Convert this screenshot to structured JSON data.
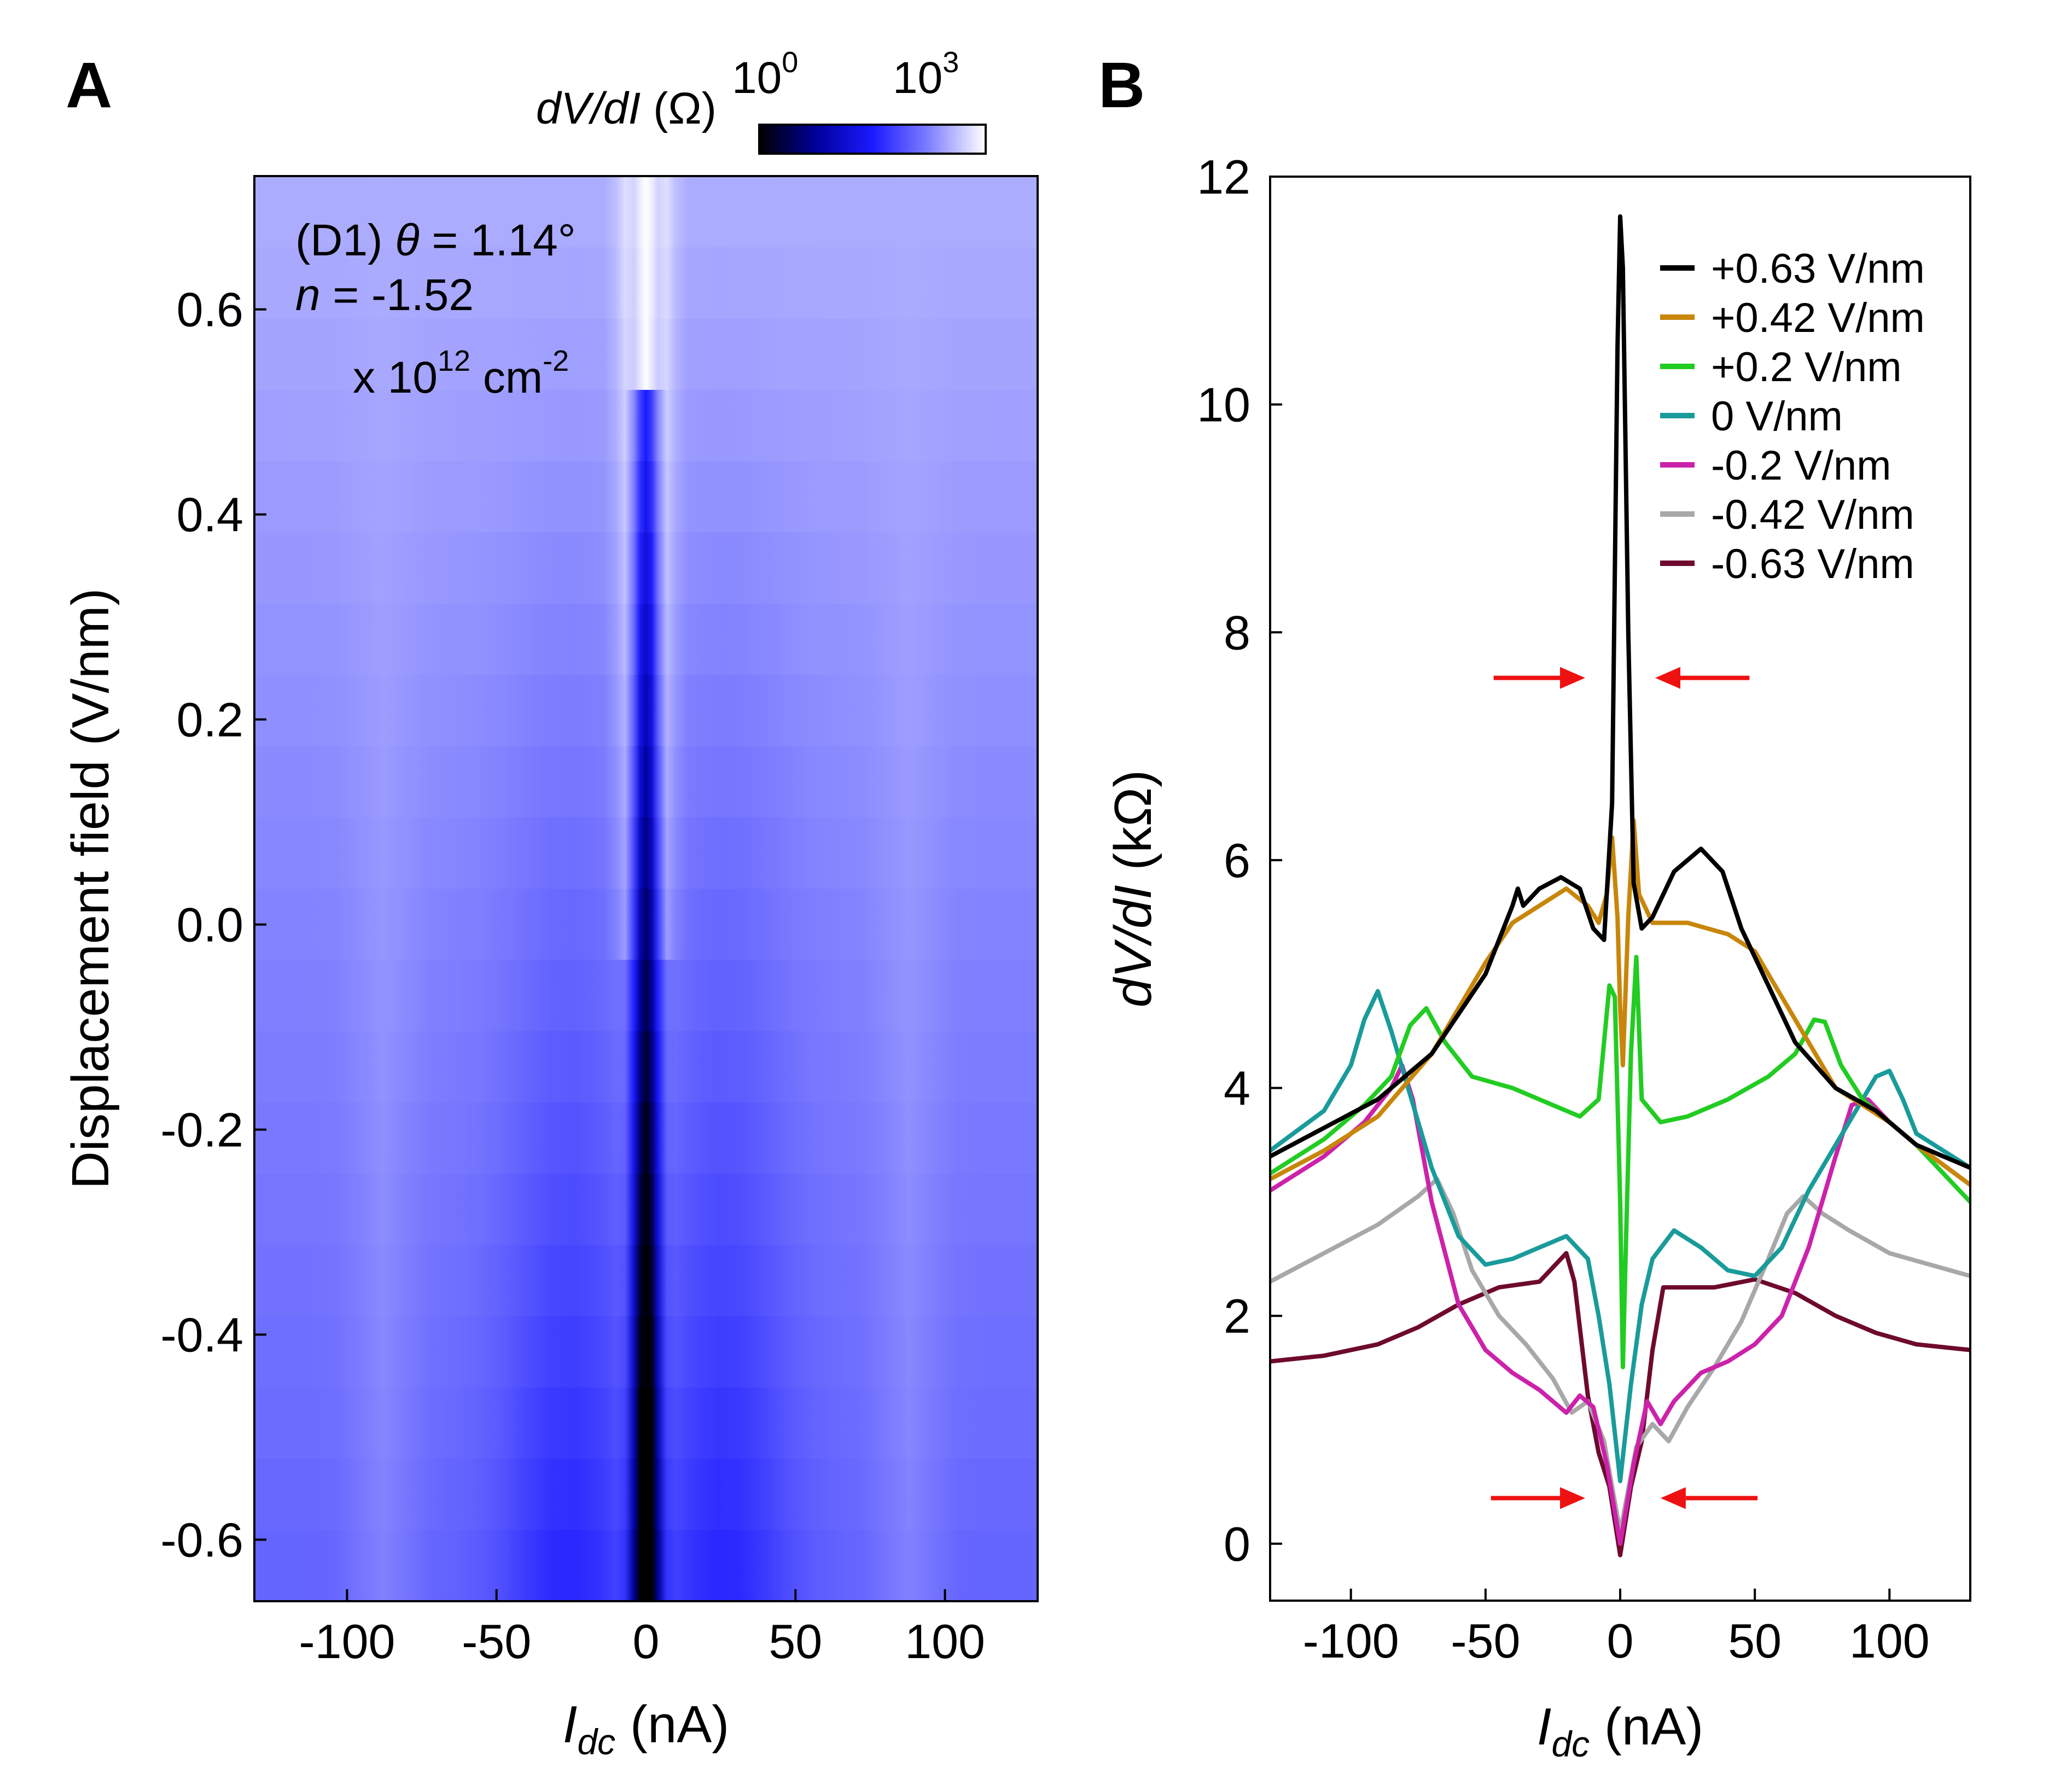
{
  "chart_data": [
    {
      "panel": "A",
      "type": "heatmap",
      "annotation": {
        "line1_prefix": "(D1) ",
        "line1_var": "θ",
        "line1_rest": " = 1.14°",
        "line2_var": "n",
        "line2_rest": " = -1.52",
        "line3_prefix": "x 10",
        "line3_exp": "12",
        "line3_unit": " cm",
        "line3_unit_exp": "-2"
      },
      "colorbar": {
        "label_italic": "dV/dI",
        "label_unit": " (Ω)",
        "tick_left_base": "10",
        "tick_left_exp": "0",
        "tick_right_base": "10",
        "tick_right_exp": "3",
        "stops": [
          "#000000",
          "#00009a",
          "#1a1aff",
          "#8080ff",
          "#ffffff"
        ]
      },
      "xlabel_italic": "I",
      "xlabel_sub": "dc",
      "xlabel_unit": " (nA)",
      "ylabel": "Displacement field (V/nm)",
      "xlim": [
        -131,
        131
      ],
      "ylim": [
        -0.66,
        0.73
      ],
      "xticks": [
        -100,
        -50,
        0,
        50,
        100
      ],
      "xtick_labels": [
        "-100",
        "-50",
        "0",
        "50",
        "100"
      ],
      "yticks": [
        -0.6,
        -0.4,
        -0.2,
        0.0,
        0.2,
        0.4,
        0.6
      ],
      "ytick_labels": [
        "-0.6",
        "-0.4",
        "-0.2",
        "0.0",
        "0.2",
        "0.4",
        "0.6"
      ],
      "rows": 20
    },
    {
      "panel": "B",
      "type": "line",
      "xlabel_italic": "I",
      "xlabel_sub": "dc",
      "xlabel_unit": " (nA)",
      "ylabel_italic": "dV/dI",
      "ylabel_unit": " (kΩ)",
      "xlim": [
        -130,
        130
      ],
      "ylim": [
        -0.5,
        12.0
      ],
      "xticks": [
        -100,
        -50,
        0,
        50,
        100
      ],
      "xtick_labels": [
        "-100",
        "-50",
        "0",
        "50",
        "100"
      ],
      "yticks": [
        0,
        2,
        4,
        6,
        8,
        10,
        12
      ],
      "ytick_labels": [
        "0",
        "2",
        "4",
        "6",
        "8",
        "10",
        "12"
      ],
      "arrows": [
        {
          "from": -47,
          "to": -13,
          "y": 7.6
        },
        {
          "from": 48,
          "to": 13,
          "y": 7.6
        },
        {
          "from": -48,
          "to": -13,
          "y": 0.4
        },
        {
          "from": 51,
          "to": 15,
          "y": 0.4
        }
      ],
      "series": [
        {
          "name": "+0.63 V/nm",
          "color": "#000000",
          "points": [
            [
              -130,
              3.4
            ],
            [
              -110,
              3.65
            ],
            [
              -90,
              3.9
            ],
            [
              -70,
              4.3
            ],
            [
              -50,
              5.0
            ],
            [
              -40,
              5.6
            ],
            [
              -38,
              5.75
            ],
            [
              -36,
              5.6
            ],
            [
              -30,
              5.75
            ],
            [
              -22,
              5.85
            ],
            [
              -15,
              5.75
            ],
            [
              -10,
              5.4
            ],
            [
              -6,
              5.3
            ],
            [
              -3,
              6.5
            ],
            [
              -1,
              10.5
            ],
            [
              0,
              11.65
            ],
            [
              1,
              11.2
            ],
            [
              3,
              8.0
            ],
            [
              5,
              5.8
            ],
            [
              8,
              5.4
            ],
            [
              12,
              5.5
            ],
            [
              20,
              5.9
            ],
            [
              30,
              6.1
            ],
            [
              38,
              5.9
            ],
            [
              45,
              5.4
            ],
            [
              55,
              4.9
            ],
            [
              65,
              4.4
            ],
            [
              80,
              4.0
            ],
            [
              95,
              3.8
            ],
            [
              110,
              3.5
            ],
            [
              130,
              3.3
            ]
          ]
        },
        {
          "name": "+0.42 V/nm",
          "color": "#c8860a",
          "points": [
            [
              -130,
              3.2
            ],
            [
              -110,
              3.45
            ],
            [
              -90,
              3.75
            ],
            [
              -70,
              4.3
            ],
            [
              -50,
              5.1
            ],
            [
              -40,
              5.45
            ],
            [
              -30,
              5.6
            ],
            [
              -20,
              5.75
            ],
            [
              -12,
              5.6
            ],
            [
              -8,
              5.45
            ],
            [
              -5,
              5.7
            ],
            [
              -3,
              6.2
            ],
            [
              -1,
              5.5
            ],
            [
              0,
              4.7
            ],
            [
              1,
              4.2
            ],
            [
              3,
              5.5
            ],
            [
              5,
              6.35
            ],
            [
              7,
              5.7
            ],
            [
              12,
              5.45
            ],
            [
              25,
              5.45
            ],
            [
              40,
              5.35
            ],
            [
              50,
              5.2
            ],
            [
              60,
              4.8
            ],
            [
              70,
              4.4
            ],
            [
              80,
              4.0
            ],
            [
              90,
              3.85
            ],
            [
              100,
              3.7
            ],
            [
              110,
              3.5
            ],
            [
              130,
              3.15
            ]
          ]
        },
        {
          "name": "+0.2 V/nm",
          "color": "#22cc22",
          "points": [
            [
              -130,
              3.25
            ],
            [
              -110,
              3.55
            ],
            [
              -95,
              3.85
            ],
            [
              -85,
              4.1
            ],
            [
              -78,
              4.55
            ],
            [
              -72,
              4.7
            ],
            [
              -65,
              4.4
            ],
            [
              -55,
              4.1
            ],
            [
              -40,
              4.0
            ],
            [
              -25,
              3.85
            ],
            [
              -15,
              3.75
            ],
            [
              -8,
              3.9
            ],
            [
              -4,
              4.9
            ],
            [
              -2,
              4.8
            ],
            [
              0,
              3.0
            ],
            [
              1,
              1.55
            ],
            [
              2,
              2.5
            ],
            [
              4,
              4.3
            ],
            [
              6,
              5.15
            ],
            [
              8,
              3.9
            ],
            [
              15,
              3.7
            ],
            [
              25,
              3.75
            ],
            [
              40,
              3.9
            ],
            [
              55,
              4.1
            ],
            [
              65,
              4.3
            ],
            [
              72,
              4.6
            ],
            [
              76,
              4.58
            ],
            [
              82,
              4.2
            ],
            [
              90,
              3.9
            ],
            [
              100,
              3.7
            ],
            [
              110,
              3.5
            ],
            [
              130,
              3.0
            ]
          ]
        },
        {
          "name": "0 V/nm",
          "color": "#1a9b9b",
          "points": [
            [
              -130,
              3.45
            ],
            [
              -110,
              3.8
            ],
            [
              -100,
              4.2
            ],
            [
              -95,
              4.6
            ],
            [
              -90,
              4.85
            ],
            [
              -85,
              4.5
            ],
            [
              -80,
              4.1
            ],
            [
              -70,
              3.3
            ],
            [
              -60,
              2.7
            ],
            [
              -50,
              2.45
            ],
            [
              -40,
              2.5
            ],
            [
              -30,
              2.6
            ],
            [
              -20,
              2.7
            ],
            [
              -12,
              2.5
            ],
            [
              -8,
              2.0
            ],
            [
              -4,
              1.4
            ],
            [
              0,
              0.55
            ],
            [
              4,
              1.4
            ],
            [
              8,
              2.1
            ],
            [
              12,
              2.5
            ],
            [
              20,
              2.75
            ],
            [
              30,
              2.6
            ],
            [
              40,
              2.4
            ],
            [
              50,
              2.35
            ],
            [
              60,
              2.6
            ],
            [
              70,
              3.1
            ],
            [
              80,
              3.5
            ],
            [
              90,
              3.9
            ],
            [
              95,
              4.1
            ],
            [
              100,
              4.15
            ],
            [
              105,
              3.9
            ],
            [
              110,
              3.6
            ],
            [
              130,
              3.3
            ]
          ]
        },
        {
          "name": "-0.2 V/nm",
          "color": "#cc22aa",
          "points": [
            [
              -130,
              3.1
            ],
            [
              -110,
              3.4
            ],
            [
              -95,
              3.7
            ],
            [
              -85,
              4.0
            ],
            [
              -81,
              4.2
            ],
            [
              -77,
              3.9
            ],
            [
              -70,
              3.0
            ],
            [
              -60,
              2.1
            ],
            [
              -50,
              1.7
            ],
            [
              -40,
              1.5
            ],
            [
              -30,
              1.35
            ],
            [
              -20,
              1.15
            ],
            [
              -15,
              1.3
            ],
            [
              -10,
              1.2
            ],
            [
              -5,
              0.7
            ],
            [
              0,
              0.0
            ],
            [
              5,
              0.7
            ],
            [
              10,
              1.25
            ],
            [
              15,
              1.05
            ],
            [
              20,
              1.25
            ],
            [
              30,
              1.5
            ],
            [
              40,
              1.6
            ],
            [
              50,
              1.75
            ],
            [
              60,
              2.0
            ],
            [
              70,
              2.6
            ],
            [
              80,
              3.4
            ],
            [
              86,
              3.85
            ],
            [
              92,
              3.9
            ],
            [
              100,
              3.7
            ],
            [
              110,
              3.5
            ],
            [
              130,
              3.15
            ]
          ]
        },
        {
          "name": "-0.42 V/nm",
          "color": "#a8a8a8",
          "points": [
            [
              -130,
              2.3
            ],
            [
              -110,
              2.55
            ],
            [
              -90,
              2.8
            ],
            [
              -75,
              3.05
            ],
            [
              -68,
              3.2
            ],
            [
              -62,
              2.9
            ],
            [
              -55,
              2.4
            ],
            [
              -45,
              2.0
            ],
            [
              -35,
              1.75
            ],
            [
              -25,
              1.45
            ],
            [
              -18,
              1.15
            ],
            [
              -12,
              1.25
            ],
            [
              -6,
              0.9
            ],
            [
              0,
              0.1
            ],
            [
              6,
              0.85
            ],
            [
              12,
              1.05
            ],
            [
              18,
              0.9
            ],
            [
              25,
              1.2
            ],
            [
              35,
              1.55
            ],
            [
              45,
              1.95
            ],
            [
              55,
              2.5
            ],
            [
              62,
              2.9
            ],
            [
              68,
              3.05
            ],
            [
              75,
              2.9
            ],
            [
              85,
              2.75
            ],
            [
              100,
              2.55
            ],
            [
              115,
              2.45
            ],
            [
              130,
              2.35
            ]
          ]
        },
        {
          "name": "-0.63 V/nm",
          "color": "#6e0a2e",
          "points": [
            [
              -130,
              1.6
            ],
            [
              -110,
              1.65
            ],
            [
              -90,
              1.75
            ],
            [
              -75,
              1.9
            ],
            [
              -60,
              2.1
            ],
            [
              -45,
              2.25
            ],
            [
              -30,
              2.3
            ],
            [
              -24,
              2.45
            ],
            [
              -20,
              2.55
            ],
            [
              -17,
              2.3
            ],
            [
              -12,
              1.3
            ],
            [
              -8,
              0.8
            ],
            [
              -4,
              0.5
            ],
            [
              0,
              -0.1
            ],
            [
              4,
              0.5
            ],
            [
              8,
              0.9
            ],
            [
              12,
              1.7
            ],
            [
              16,
              2.25
            ],
            [
              22,
              2.25
            ],
            [
              35,
              2.25
            ],
            [
              50,
              2.32
            ],
            [
              65,
              2.2
            ],
            [
              80,
              2.0
            ],
            [
              95,
              1.85
            ],
            [
              110,
              1.75
            ],
            [
              130,
              1.7
            ]
          ]
        }
      ]
    }
  ],
  "panel_labels": {
    "a": "A",
    "b": "B"
  }
}
